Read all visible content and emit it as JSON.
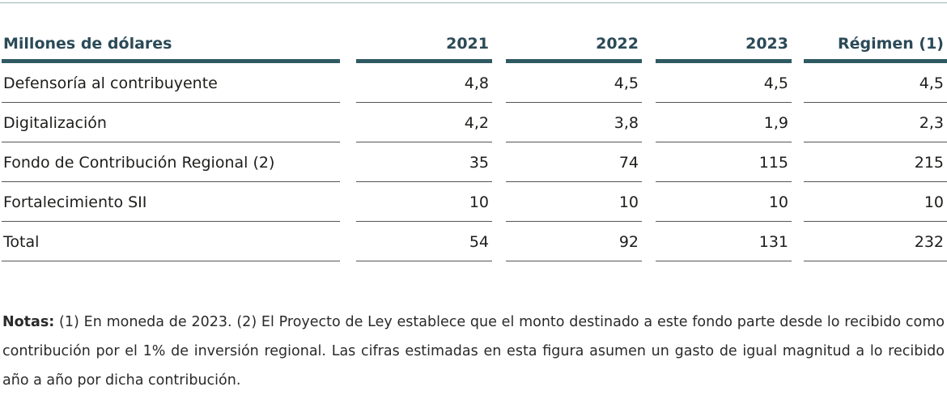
{
  "table": {
    "headers": [
      "Millones de dólares",
      "2021",
      "2022",
      "2023",
      "Régimen (1)"
    ],
    "rows": [
      [
        "Defensoría al contribuyente",
        "4,8",
        "4,5",
        "4,5",
        "4,5"
      ],
      [
        "Digitalización",
        "4,2",
        "3,8",
        "1,9",
        "2,3"
      ],
      [
        "Fondo de Contribución Regional (2)",
        "35",
        "74",
        "115",
        "215"
      ],
      [
        "Fortalecimiento SII",
        "10",
        "10",
        "10",
        "10"
      ],
      [
        "Total",
        "54",
        "92",
        "131",
        "232"
      ]
    ]
  },
  "notes": {
    "label": "Notas:",
    "text": " (1) En moneda de 2023. (2) El Proyecto de Ley establece que el monto destinado a este fondo parte desde lo recibido como contribución por el 1% de inversión regional. Las cifras estimadas en esta figura asumen un gasto de igual magnitud a lo recibido año a año por dicha contribución."
  }
}
